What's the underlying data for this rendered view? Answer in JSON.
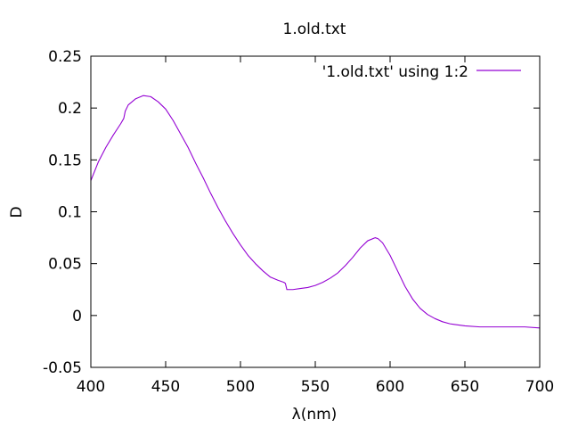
{
  "chart_data": {
    "type": "line",
    "title": "1.old.txt",
    "xlabel": "λ(nm)",
    "ylabel": "D",
    "xlim": [
      400,
      700
    ],
    "ylim": [
      -0.05,
      0.25
    ],
    "x_ticks": [
      400,
      450,
      500,
      550,
      600,
      650,
      700
    ],
    "x_tick_labels": [
      "400",
      "450",
      "500",
      "550",
      "600",
      "650",
      "700"
    ],
    "y_ticks": [
      -0.05,
      0,
      0.05,
      0.1,
      0.15,
      0.2,
      0.25
    ],
    "y_tick_labels": [
      "-0.05",
      "0",
      "0.05",
      "0.1",
      "0.15",
      "0.2",
      "0.25"
    ],
    "grid": false,
    "legend_position": "top-right",
    "series": [
      {
        "name": "'1.old.txt' using 1:2",
        "color": "#9400d3",
        "x": [
          400,
          405,
          410,
          415,
          420,
          422,
          423,
          425,
          430,
          435,
          440,
          445,
          450,
          455,
          460,
          465,
          470,
          475,
          480,
          485,
          490,
          495,
          500,
          505,
          510,
          515,
          520,
          525,
          529,
          530,
          531,
          535,
          540,
          545,
          550,
          555,
          560,
          565,
          570,
          575,
          580,
          585,
          590,
          592,
          595,
          600,
          605,
          610,
          615,
          620,
          625,
          630,
          635,
          640,
          650,
          660,
          670,
          680,
          690,
          700
        ],
        "y": [
          0.13,
          0.148,
          0.162,
          0.174,
          0.185,
          0.19,
          0.197,
          0.203,
          0.209,
          0.212,
          0.211,
          0.206,
          0.199,
          0.188,
          0.175,
          0.162,
          0.147,
          0.133,
          0.118,
          0.104,
          0.091,
          0.079,
          0.068,
          0.058,
          0.05,
          0.043,
          0.037,
          0.034,
          0.032,
          0.031,
          0.025,
          0.025,
          0.026,
          0.027,
          0.029,
          0.032,
          0.036,
          0.041,
          0.048,
          0.056,
          0.065,
          0.072,
          0.075,
          0.074,
          0.07,
          0.058,
          0.043,
          0.028,
          0.016,
          0.007,
          0.001,
          -0.003,
          -0.006,
          -0.008,
          -0.01,
          -0.011,
          -0.011,
          -0.011,
          -0.011,
          -0.012
        ]
      }
    ]
  }
}
